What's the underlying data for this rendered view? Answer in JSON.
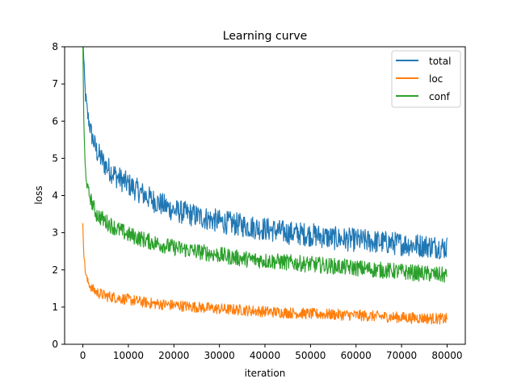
{
  "chart_data": {
    "type": "line",
    "title": "Learning curve",
    "xlabel": "iteration",
    "ylabel": "loss",
    "xlim": [
      -4000,
      84000
    ],
    "ylim": [
      0,
      8
    ],
    "xticks": [
      0,
      10000,
      20000,
      30000,
      40000,
      50000,
      60000,
      70000,
      80000
    ],
    "yticks": [
      0,
      1,
      2,
      3,
      4,
      5,
      6,
      7,
      8
    ],
    "legend_position": "top-right",
    "grid": false,
    "series": [
      {
        "name": "total",
        "color": "#1f77b4",
        "noise": 0.32,
        "x": [
          0,
          200,
          500,
          1000,
          2000,
          3000,
          5000,
          7500,
          10000,
          15000,
          20000,
          25000,
          30000,
          35000,
          40000,
          45000,
          50000,
          55000,
          60000,
          65000,
          70000,
          75000,
          80000
        ],
        "y": [
          8.5,
          7.6,
          6.8,
          6.2,
          5.6,
          5.2,
          4.8,
          4.5,
          4.3,
          3.9,
          3.6,
          3.45,
          3.3,
          3.2,
          3.1,
          3.0,
          2.95,
          2.85,
          2.8,
          2.75,
          2.7,
          2.65,
          2.6
        ]
      },
      {
        "name": "loc",
        "color": "#ff7f0e",
        "noise": 0.15,
        "x": [
          0,
          200,
          500,
          1000,
          2000,
          3000,
          5000,
          7500,
          10000,
          15000,
          20000,
          25000,
          30000,
          35000,
          40000,
          45000,
          50000,
          55000,
          60000,
          65000,
          70000,
          75000,
          80000
        ],
        "y": [
          3.3,
          2.5,
          2.0,
          1.7,
          1.5,
          1.4,
          1.3,
          1.25,
          1.2,
          1.1,
          1.05,
          1.0,
          0.95,
          0.92,
          0.88,
          0.85,
          0.82,
          0.8,
          0.78,
          0.75,
          0.72,
          0.7,
          0.68
        ]
      },
      {
        "name": "conf",
        "color": "#2ca02c",
        "noise": 0.22,
        "x": [
          0,
          200,
          500,
          1000,
          2000,
          3000,
          5000,
          7500,
          10000,
          15000,
          20000,
          25000,
          30000,
          35000,
          40000,
          45000,
          50000,
          55000,
          60000,
          65000,
          70000,
          75000,
          80000
        ],
        "y": [
          8.3,
          6.0,
          4.8,
          4.2,
          3.8,
          3.5,
          3.3,
          3.1,
          2.95,
          2.75,
          2.6,
          2.5,
          2.4,
          2.3,
          2.25,
          2.2,
          2.15,
          2.1,
          2.05,
          2.0,
          1.95,
          1.9,
          1.85
        ]
      }
    ]
  }
}
